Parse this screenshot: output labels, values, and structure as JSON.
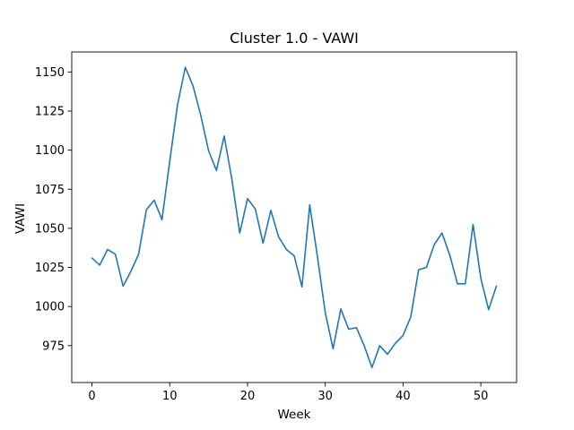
{
  "chart_data": {
    "type": "line",
    "title": "Cluster 1.0 - VAWI",
    "xlabel": "Week",
    "ylabel": "VAWI",
    "xlim": [
      -2.6,
      54.6
    ],
    "ylim": [
      951.4,
      1162.8
    ],
    "xticks": [
      0,
      10,
      20,
      30,
      40,
      50
    ],
    "yticks": [
      975,
      1000,
      1025,
      1050,
      1075,
      1100,
      1125,
      1150
    ],
    "grid": false,
    "line_color": "#1f77b4",
    "series": [
      {
        "x": [
          0,
          1,
          2,
          3,
          4,
          5,
          6,
          7,
          8,
          9,
          10,
          11,
          12,
          13,
          14,
          15,
          16,
          17,
          18,
          19,
          20,
          21,
          22,
          23,
          24,
          25,
          26,
          27,
          28,
          29,
          30,
          31,
          32,
          33,
          34,
          35,
          36,
          37,
          38,
          39,
          40,
          41,
          42,
          43,
          44,
          45,
          46,
          47,
          48,
          49,
          50,
          51,
          52
        ],
        "values": [
          1031,
          1026.5,
          1036.5,
          1033.5,
          1013,
          1022.5,
          1033.5,
          1062,
          1068,
          1055.5,
          1093,
          1129,
          1153,
          1141,
          1122,
          1099.5,
          1087,
          1109,
          1081,
          1047,
          1069,
          1062.5,
          1040.5,
          1061.5,
          1044.5,
          1036.5,
          1032.5,
          1012.5,
          1065,
          1031.5,
          996,
          973,
          998.5,
          985.5,
          986.5,
          975,
          961,
          975,
          969.5,
          976.5,
          981.5,
          993.5,
          1023.5,
          1025,
          1039.5,
          1047,
          1033,
          1014.5,
          1014.5,
          1052.5,
          1018,
          998,
          1013
        ]
      }
    ]
  }
}
